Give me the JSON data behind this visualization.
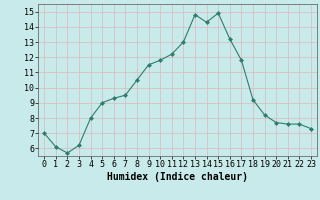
{
  "x": [
    0,
    1,
    2,
    3,
    4,
    5,
    6,
    7,
    8,
    9,
    10,
    11,
    12,
    13,
    14,
    15,
    16,
    17,
    18,
    19,
    20,
    21,
    22,
    23
  ],
  "y": [
    7.0,
    6.1,
    5.7,
    6.2,
    8.0,
    9.0,
    9.3,
    9.5,
    10.5,
    11.5,
    11.8,
    12.2,
    13.0,
    14.8,
    14.3,
    14.9,
    13.2,
    11.8,
    9.2,
    8.2,
    7.7,
    7.6,
    7.6,
    7.3
  ],
  "xlim": [
    -0.5,
    23.5
  ],
  "ylim": [
    5.5,
    15.5
  ],
  "yticks": [
    6,
    7,
    8,
    9,
    10,
    11,
    12,
    13,
    14,
    15
  ],
  "xticks": [
    0,
    1,
    2,
    3,
    4,
    5,
    6,
    7,
    8,
    9,
    10,
    11,
    12,
    13,
    14,
    15,
    16,
    17,
    18,
    19,
    20,
    21,
    22,
    23
  ],
  "xlabel": "Humidex (Indice chaleur)",
  "line_color": "#2e7d6e",
  "marker": "D",
  "marker_size": 2.0,
  "bg_color": "#c8eaea",
  "grid_color": "#d8b8b8",
  "xlabel_fontsize": 7,
  "tick_fontsize": 6,
  "fig_width": 3.2,
  "fig_height": 2.0,
  "dpi": 100
}
